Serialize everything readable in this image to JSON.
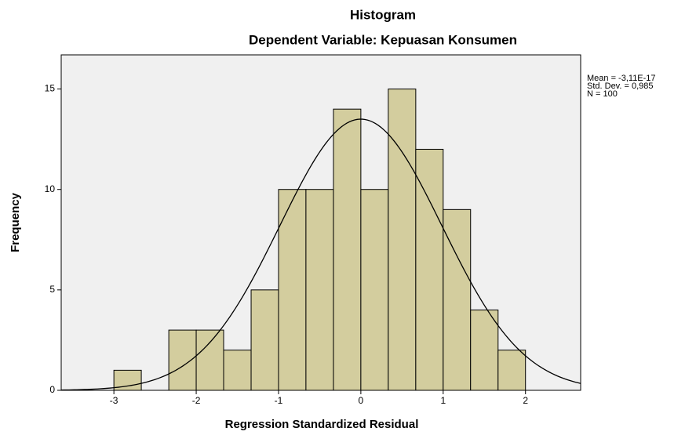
{
  "chart_data": {
    "type": "histogram",
    "title": "Histogram",
    "subtitle": "Dependent Variable: Kepuasan Konsumen",
    "x_label": "Regression Standardized Residual",
    "y_label": "Frequency",
    "bins": [
      -3,
      -2.667,
      -2.333,
      -2,
      -1.667,
      -1.333,
      -1,
      -0.667,
      -0.333,
      0,
      0.333,
      0.667,
      1,
      1.333,
      1.667,
      2
    ],
    "values": [
      1,
      0,
      3,
      3,
      2,
      5,
      10,
      10,
      14,
      10,
      15,
      12,
      9,
      4,
      2
    ],
    "color": "#d3cd9e",
    "xlim": [
      -3.64,
      2.67
    ],
    "ylim": [
      0,
      16.7
    ],
    "xticks": [
      -3,
      -2,
      -1,
      0,
      1,
      2
    ],
    "yticks": [
      0,
      5,
      10,
      15
    ],
    "normal_curve": true,
    "stats": [
      {
        "value": -3.11e-17,
        "label": "Mean = -3,11E-17"
      },
      {
        "value": 0.985,
        "label": "Std. Dev. = 0,985"
      },
      {
        "value": 100,
        "label": "N = 100"
      }
    ]
  }
}
